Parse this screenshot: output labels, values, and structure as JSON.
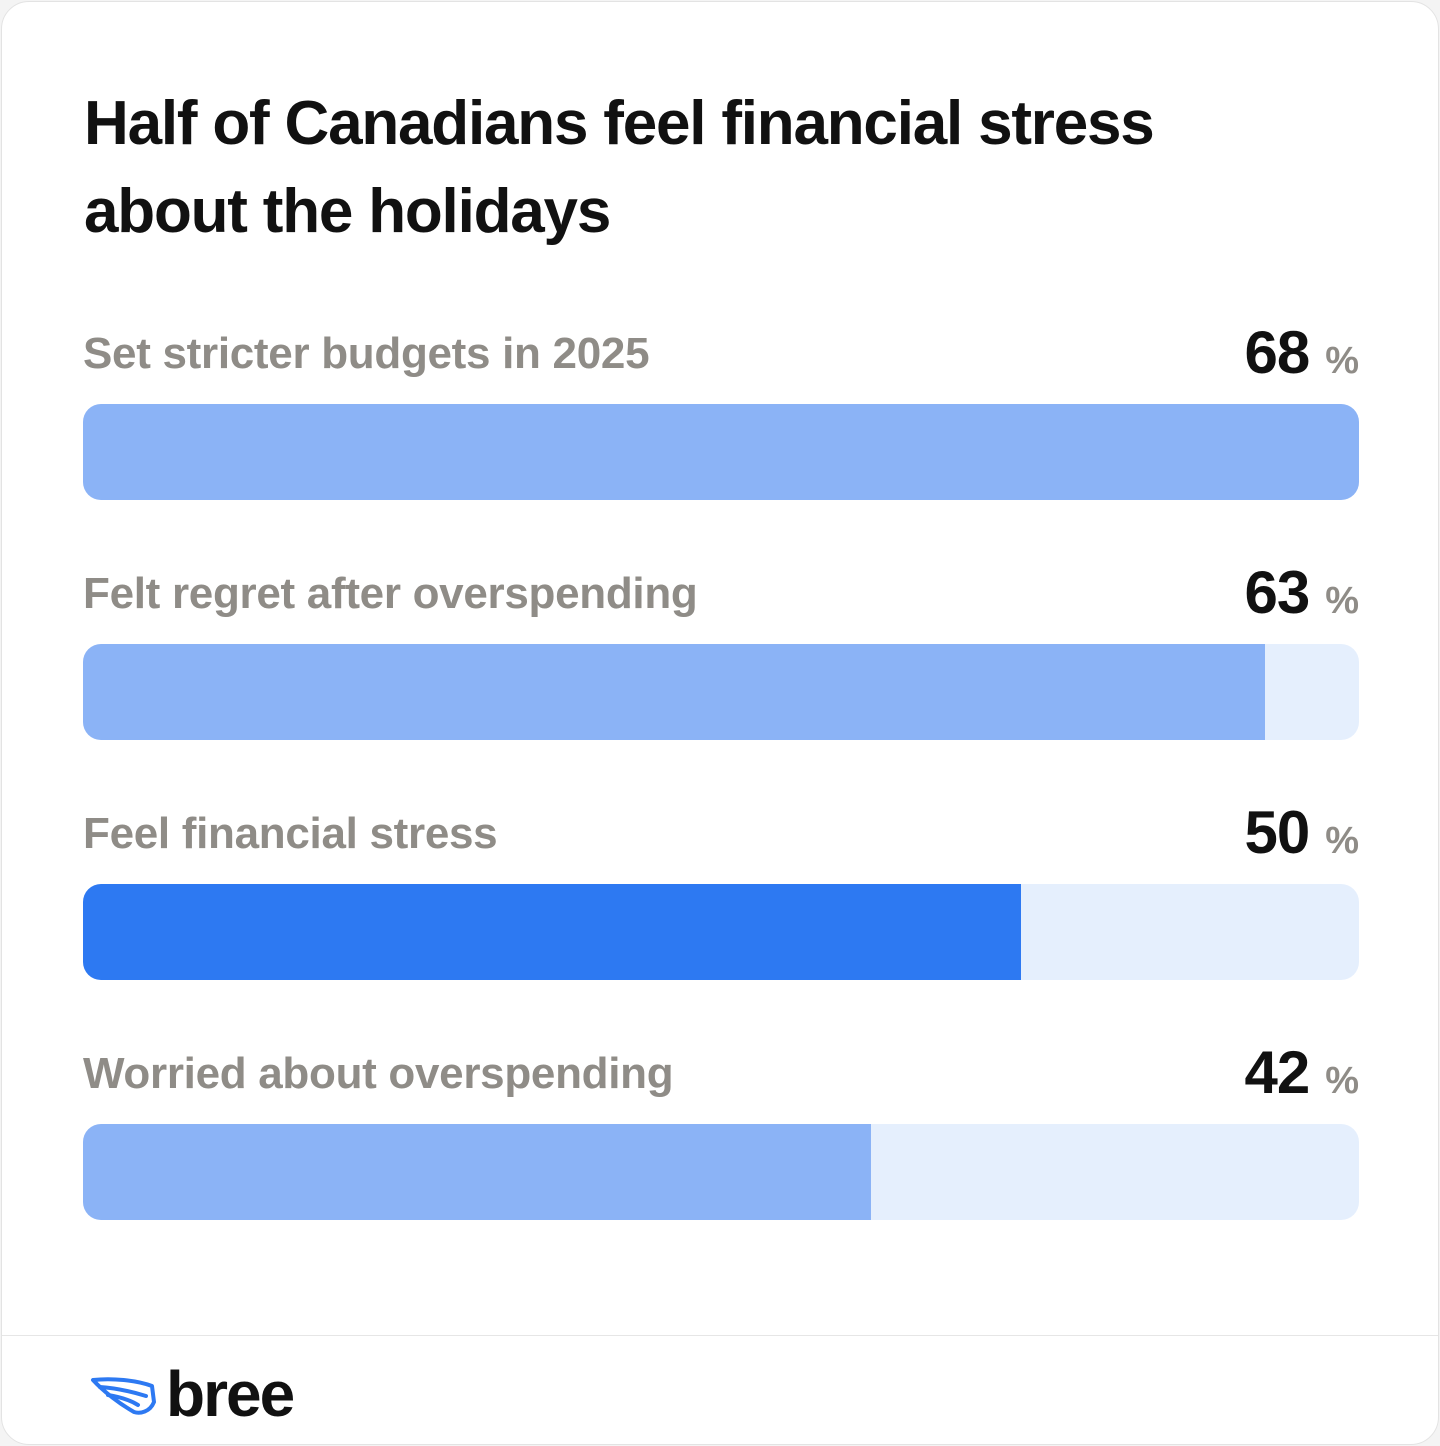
{
  "chart_data": {
    "type": "bar",
    "orientation": "horizontal",
    "title": "Half of Canadians feel financial stress about the holidays",
    "categories": [
      "Set stricter budgets in 2025",
      "Felt regret after overspending",
      "Feel financial stress",
      "Worried about overspending"
    ],
    "values": [
      68,
      63,
      50,
      42
    ],
    "value_suffix": "%",
    "xlim": [
      0,
      68
    ],
    "highlight_index": 2,
    "colors": {
      "bar": "#8bb3f6",
      "bar_highlight": "#2d79f2",
      "track": "#e5effd",
      "label": "#8f8c87",
      "value": "#111111"
    }
  },
  "footer": {
    "brand": "bree",
    "logo_icon": "wing-icon",
    "logo_color": "#2d79f2"
  }
}
